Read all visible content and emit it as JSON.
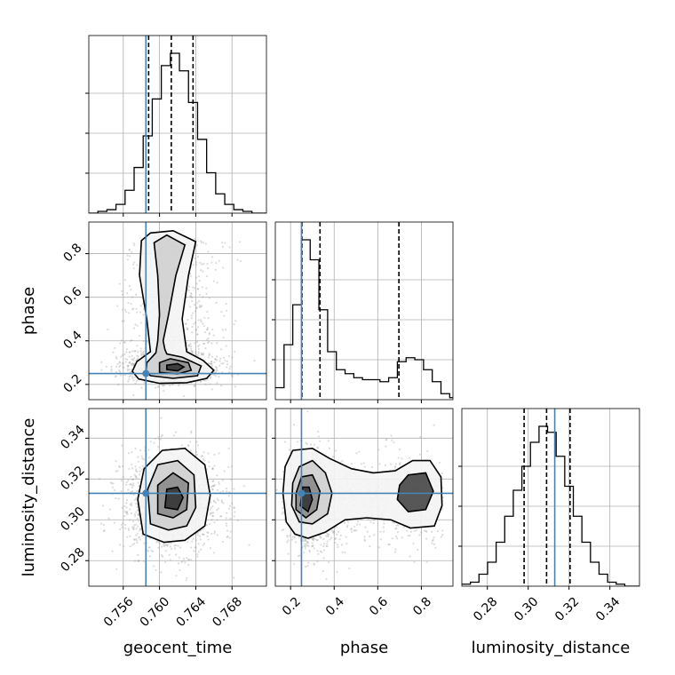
{
  "chart_data": {
    "type": "corner",
    "parameters": [
      "geocent_time",
      "phase",
      "luminosity_distance"
    ],
    "truths": {
      "geocent_time": 0.7585,
      "phase": 0.25,
      "luminosity_distance": 0.313
    },
    "quantiles": {
      "geocent_time": [
        0.7588,
        0.7613,
        0.7637
      ],
      "phase": [
        0.252,
        0.335,
        0.697
      ],
      "luminosity_distance": [
        0.298,
        0.309,
        0.3205
      ]
    },
    "axes": {
      "geocent_time": {
        "range": [
          0.7522,
          0.7718
        ],
        "ticks": [
          0.756,
          0.76,
          0.764,
          0.768
        ],
        "tick_labels": [
          "0.756",
          "0.760",
          "0.764",
          "0.768"
        ]
      },
      "phase": {
        "range": [
          0.13,
          0.945
        ],
        "ticks": [
          0.2,
          0.4,
          0.6,
          0.8
        ],
        "tick_labels": [
          "0.2",
          "0.4",
          "0.6",
          "0.8"
        ]
      },
      "luminosity_distance": {
        "range": [
          0.2675,
          0.3545
        ],
        "ticks": [
          0.28,
          0.3,
          0.32,
          0.34
        ],
        "tick_labels": [
          "0.28",
          "0.30",
          "0.32",
          "0.34"
        ]
      }
    },
    "histograms": {
      "geocent_time": {
        "bin_edges": [
          0.7522,
          0.7532,
          0.7542,
          0.7552,
          0.7562,
          0.7572,
          0.7582,
          0.7592,
          0.7602,
          0.7612,
          0.7622,
          0.7632,
          0.7642,
          0.7652,
          0.7662,
          0.7672,
          0.7682,
          0.7692,
          0.7702,
          0.7712,
          0.7722
        ],
        "counts": [
          0,
          2,
          4,
          10,
          26,
          52,
          88,
          130,
          168,
          182,
          162,
          126,
          84,
          46,
          22,
          10,
          4,
          2,
          0,
          0
        ]
      },
      "phase": {
        "bin_edges": [
          0.13,
          0.17,
          0.21,
          0.25,
          0.29,
          0.33,
          0.37,
          0.41,
          0.45,
          0.49,
          0.53,
          0.57,
          0.61,
          0.65,
          0.69,
          0.73,
          0.77,
          0.81,
          0.85,
          0.89,
          0.93,
          0.97
        ],
        "counts": [
          12,
          55,
          95,
          160,
          140,
          90,
          48,
          30,
          26,
          22,
          20,
          20,
          18,
          22,
          38,
          42,
          40,
          30,
          18,
          6,
          2
        ]
      },
      "luminosity_distance": {
        "bin_edges": [
          0.2675,
          0.2717,
          0.2759,
          0.2801,
          0.2843,
          0.2885,
          0.2927,
          0.2969,
          0.3011,
          0.3053,
          0.3095,
          0.3137,
          0.3179,
          0.3221,
          0.3263,
          0.3305,
          0.3347,
          0.3389,
          0.3431,
          0.3473,
          0.3515,
          0.3557
        ],
        "counts": [
          2,
          4,
          12,
          24,
          44,
          70,
          96,
          120,
          144,
          160,
          154,
          130,
          100,
          70,
          44,
          24,
          12,
          4,
          2,
          0,
          0
        ]
      }
    },
    "contours": [
      {
        "x": "geocent_time",
        "y": "phase",
        "levels": [
          [
            [
              0.7577,
              0.225
            ],
            [
              0.76,
              0.205
            ],
            [
              0.763,
              0.208
            ],
            [
              0.7652,
              0.228
            ],
            [
              0.766,
              0.265
            ],
            [
              0.7648,
              0.31
            ],
            [
              0.763,
              0.35
            ],
            [
              0.7625,
              0.5
            ],
            [
              0.7632,
              0.7
            ],
            [
              0.764,
              0.855
            ],
            [
              0.7615,
              0.905
            ],
            [
              0.759,
              0.895
            ],
            [
              0.758,
              0.86
            ],
            [
              0.7578,
              0.7
            ],
            [
              0.7586,
              0.5
            ],
            [
              0.759,
              0.35
            ],
            [
              0.7575,
              0.305
            ],
            [
              0.757,
              0.26
            ]
          ],
          [
            [
              0.759,
              0.24
            ],
            [
              0.7615,
              0.228
            ],
            [
              0.7642,
              0.24
            ],
            [
              0.7646,
              0.285
            ],
            [
              0.7625,
              0.325
            ],
            [
              0.7608,
              0.34
            ],
            [
              0.7606,
              0.36
            ],
            [
              0.7604,
              0.4
            ],
            [
              0.761,
              0.52
            ],
            [
              0.7618,
              0.7
            ],
            [
              0.7628,
              0.84
            ],
            [
              0.7608,
              0.885
            ],
            [
              0.7594,
              0.85
            ],
            [
              0.7598,
              0.7
            ],
            [
              0.76,
              0.52
            ],
            [
              0.7598,
              0.4
            ],
            [
              0.7596,
              0.345
            ],
            [
              0.7586,
              0.3
            ],
            [
              0.7585,
              0.262
            ]
          ],
          [
            [
              0.76,
              0.255
            ],
            [
              0.762,
              0.248
            ],
            [
              0.7635,
              0.265
            ],
            [
              0.7632,
              0.3
            ],
            [
              0.7612,
              0.318
            ],
            [
              0.76,
              0.3
            ]
          ],
          [
            [
              0.7608,
              0.268
            ],
            [
              0.762,
              0.262
            ],
            [
              0.7627,
              0.28
            ],
            [
              0.762,
              0.295
            ],
            [
              0.7608,
              0.288
            ]
          ]
        ]
      },
      {
        "x": "geocent_time",
        "y": "luminosity_distance",
        "levels": [
          [
            [
              0.7582,
              0.293
            ],
            [
              0.7605,
              0.289
            ],
            [
              0.7628,
              0.29
            ],
            [
              0.765,
              0.297
            ],
            [
              0.7656,
              0.312
            ],
            [
              0.765,
              0.327
            ],
            [
              0.7628,
              0.335
            ],
            [
              0.7603,
              0.334
            ],
            [
              0.7583,
              0.325
            ],
            [
              0.7576,
              0.31
            ]
          ],
          [
            [
              0.759,
              0.298
            ],
            [
              0.761,
              0.295
            ],
            [
              0.763,
              0.297
            ],
            [
              0.764,
              0.306
            ],
            [
              0.7638,
              0.322
            ],
            [
              0.762,
              0.329
            ],
            [
              0.7598,
              0.327
            ],
            [
              0.7587,
              0.315
            ]
          ],
          [
            [
              0.7598,
              0.303
            ],
            [
              0.7615,
              0.301
            ],
            [
              0.763,
              0.305
            ],
            [
              0.7632,
              0.318
            ],
            [
              0.7615,
              0.323
            ],
            [
              0.7598,
              0.317
            ]
          ],
          [
            [
              0.7606,
              0.306
            ],
            [
              0.762,
              0.305
            ],
            [
              0.7626,
              0.311
            ],
            [
              0.762,
              0.316
            ],
            [
              0.7608,
              0.315
            ]
          ]
        ]
      },
      {
        "x": "phase",
        "y": "luminosity_distance",
        "levels": [
          [
            [
              0.165,
              0.313
            ],
            [
              0.18,
              0.299
            ],
            [
              0.22,
              0.293
            ],
            [
              0.28,
              0.291
            ],
            [
              0.36,
              0.294
            ],
            [
              0.45,
              0.3
            ],
            [
              0.55,
              0.301
            ],
            [
              0.66,
              0.3
            ],
            [
              0.75,
              0.296
            ],
            [
              0.86,
              0.297
            ],
            [
              0.895,
              0.307
            ],
            [
              0.89,
              0.321
            ],
            [
              0.84,
              0.329
            ],
            [
              0.76,
              0.329
            ],
            [
              0.68,
              0.324
            ],
            [
              0.58,
              0.323
            ],
            [
              0.48,
              0.325
            ],
            [
              0.38,
              0.33
            ],
            [
              0.3,
              0.335
            ],
            [
              0.21,
              0.334
            ],
            [
              0.175,
              0.326
            ]
          ],
          [
            [
              0.205,
              0.307
            ],
            [
              0.24,
              0.299
            ],
            [
              0.3,
              0.298
            ],
            [
              0.37,
              0.303
            ],
            [
              0.39,
              0.313
            ],
            [
              0.36,
              0.323
            ],
            [
              0.3,
              0.329
            ],
            [
              0.24,
              0.326
            ],
            [
              0.21,
              0.318
            ]
          ],
          [
            [
              0.225,
              0.305
            ],
            [
              0.27,
              0.301
            ],
            [
              0.32,
              0.305
            ],
            [
              0.335,
              0.314
            ],
            [
              0.3,
              0.322
            ],
            [
              0.25,
              0.321
            ],
            [
              0.225,
              0.313
            ]
          ],
          [
            [
              0.245,
              0.307
            ],
            [
              0.28,
              0.304
            ],
            [
              0.3,
              0.31
            ],
            [
              0.285,
              0.316
            ],
            [
              0.255,
              0.316
            ]
          ],
          [
            [
              0.69,
              0.31
            ],
            [
              0.74,
              0.304
            ],
            [
              0.82,
              0.305
            ],
            [
              0.855,
              0.314
            ],
            [
              0.82,
              0.323
            ],
            [
              0.74,
              0.322
            ],
            [
              0.7,
              0.317
            ]
          ]
        ]
      }
    ],
    "grid": true,
    "colors": {
      "truth": "#4682b4",
      "hist": "#000000",
      "contour": "#000000",
      "samples": "#9a9a9a"
    }
  }
}
